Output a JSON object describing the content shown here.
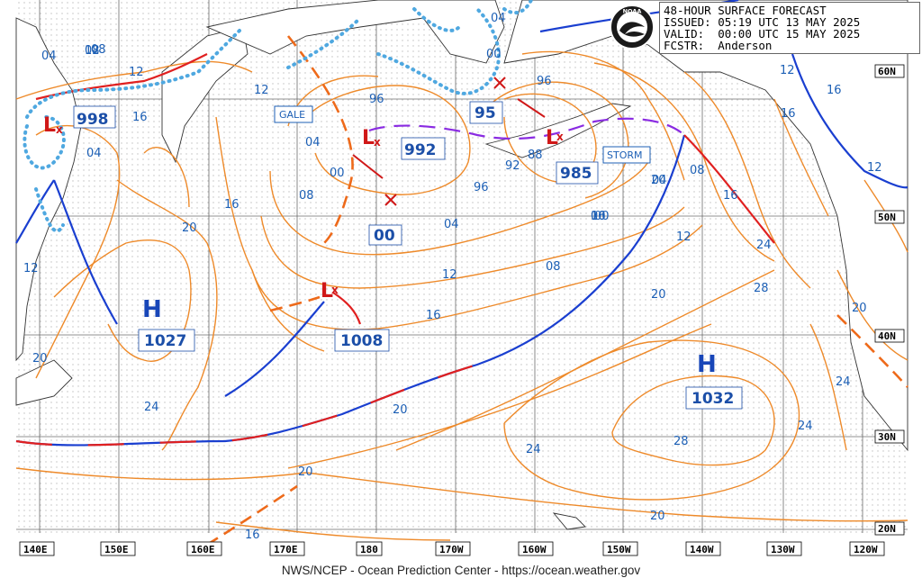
{
  "header": {
    "title": "48-HOUR SURFACE FORECAST",
    "issued_label": "ISSUED:",
    "issued": "05:19 UTC 13 MAY 2025",
    "valid_label": "VALID:",
    "valid": "00:00 UTC 15 MAY 2025",
    "fcstr_label": "FCSTR:",
    "fcstr": "Anderson"
  },
  "logo_text": "NOAA",
  "footer": "NWS/NCEP - Ocean Prediction Center - https://ocean.weather.gov",
  "lon_labels": [
    "140E",
    "150E",
    "160E",
    "170E",
    "180",
    "170W",
    "160W",
    "150W",
    "140W",
    "130W",
    "120W"
  ],
  "lat_labels": [
    "60N",
    "50N",
    "40N",
    "30N",
    "20N"
  ],
  "centers": [
    {
      "type": "L",
      "pressure": "998"
    },
    {
      "type": "L",
      "pressure": "992",
      "tag": "GALE"
    },
    {
      "type": "L",
      "pressure": "985",
      "tag": "STORM"
    },
    {
      "type": "L",
      "pressure": "1008"
    },
    {
      "type": "H",
      "pressure": "1027"
    },
    {
      "type": "H",
      "pressure": "1032"
    }
  ],
  "other_pressure_labels": [
    "95",
    "00"
  ],
  "isobar_labels": [
    "04",
    "08",
    "12",
    "16",
    "04",
    "12",
    "16",
    "12",
    "96",
    "96",
    "04",
    "00",
    "08",
    "16",
    "00",
    "04",
    "92",
    "88",
    "96",
    "08",
    "04",
    "00",
    "12",
    "16",
    "24",
    "20",
    "16",
    "08",
    "12",
    "16",
    "20",
    "24",
    "28",
    "20",
    "24",
    "28",
    "20",
    "24",
    "24",
    "20",
    "16",
    "20",
    "12",
    "20",
    "24",
    "20",
    "16",
    "12",
    "12",
    "16",
    "04",
    "00",
    "08"
  ]
}
